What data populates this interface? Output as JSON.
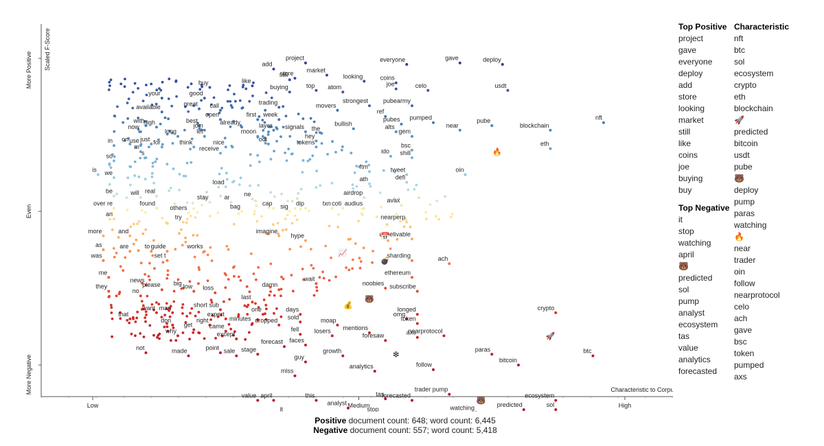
{
  "chart_data": {
    "type": "scatter",
    "ylabel_top": "More Positive",
    "ylabel_mid": "Even",
    "ylabel_bottom": "More Negative",
    "yaxis_title": "Scaled F-Score",
    "xaxis_title": "Characteristic to Corpus",
    "xticks": [
      "Low",
      "Medium",
      "High"
    ],
    "y_scale": [
      0,
      1
    ],
    "x_scale": [
      0,
      1
    ],
    "colors": {
      "positive": "#3b4ca0",
      "neutral": "#f6f1b2",
      "negative": "#b2182b"
    },
    "points": [
      {
        "t": "project",
        "x": 0.4,
        "y": 0.985
      },
      {
        "t": "everyone",
        "x": 0.59,
        "y": 0.98
      },
      {
        "t": "gave",
        "x": 0.69,
        "y": 0.985
      },
      {
        "t": "deploy",
        "x": 0.77,
        "y": 0.98
      },
      {
        "t": "add",
        "x": 0.34,
        "y": 0.965
      },
      {
        "t": "still",
        "x": 0.37,
        "y": 0.93
      },
      {
        "t": "store",
        "x": 0.38,
        "y": 0.935
      },
      {
        "t": "market",
        "x": 0.44,
        "y": 0.945
      },
      {
        "t": "looking",
        "x": 0.51,
        "y": 0.925
      },
      {
        "t": "coins",
        "x": 0.57,
        "y": 0.92
      },
      {
        "t": "buy",
        "x": 0.22,
        "y": 0.905
      },
      {
        "t": "like",
        "x": 0.3,
        "y": 0.91
      },
      {
        "t": "buying",
        "x": 0.37,
        "y": 0.89
      },
      {
        "t": "top",
        "x": 0.42,
        "y": 0.895
      },
      {
        "t": "atom",
        "x": 0.47,
        "y": 0.89
      },
      {
        "t": "joe",
        "x": 0.57,
        "y": 0.9
      },
      {
        "t": "celo",
        "x": 0.63,
        "y": 0.895
      },
      {
        "t": "usdt",
        "x": 0.78,
        "y": 0.895
      },
      {
        "t": "your",
        "x": 0.13,
        "y": 0.87
      },
      {
        "t": "good",
        "x": 0.21,
        "y": 0.87
      },
      {
        "t": "trading",
        "x": 0.35,
        "y": 0.84
      },
      {
        "t": "movers",
        "x": 0.46,
        "y": 0.83
      },
      {
        "t": "strongest",
        "x": 0.52,
        "y": 0.845
      },
      {
        "t": "pubearmy",
        "x": 0.6,
        "y": 0.845
      },
      {
        "t": "available",
        "x": 0.13,
        "y": 0.825
      },
      {
        "t": "great",
        "x": 0.2,
        "y": 0.835
      },
      {
        "t": "call",
        "x": 0.24,
        "y": 0.83
      },
      {
        "t": "first",
        "x": 0.31,
        "y": 0.8
      },
      {
        "t": "week",
        "x": 0.35,
        "y": 0.8
      },
      {
        "t": "ref",
        "x": 0.55,
        "y": 0.81
      },
      {
        "t": "with",
        "x": 0.1,
        "y": 0.78
      },
      {
        "t": "high",
        "x": 0.12,
        "y": 0.775
      },
      {
        "t": "open",
        "x": 0.24,
        "y": 0.8
      },
      {
        "t": "best",
        "x": 0.2,
        "y": 0.78
      },
      {
        "t": "already",
        "x": 0.28,
        "y": 0.775
      },
      {
        "t": "join",
        "x": 0.21,
        "y": 0.765
      },
      {
        "t": "pubes",
        "x": 0.58,
        "y": 0.785
      },
      {
        "t": "pumped",
        "x": 0.64,
        "y": 0.79
      },
      {
        "t": "pube",
        "x": 0.75,
        "y": 0.78
      },
      {
        "t": "bullish",
        "x": 0.49,
        "y": 0.77
      },
      {
        "t": "nft",
        "x": 0.96,
        "y": 0.79
      },
      {
        "t": "now",
        "x": 0.09,
        "y": 0.76
      },
      {
        "t": "long",
        "x": 0.16,
        "y": 0.745
      },
      {
        "t": "let",
        "x": 0.21,
        "y": 0.745
      },
      {
        "t": "layer",
        "x": 0.34,
        "y": 0.765
      },
      {
        "t": "moon",
        "x": 0.31,
        "y": 0.745
      },
      {
        "t": "signals",
        "x": 0.4,
        "y": 0.76
      },
      {
        "t": "the",
        "x": 0.43,
        "y": 0.755
      },
      {
        "t": "alts",
        "x": 0.57,
        "y": 0.76
      },
      {
        "t": "near",
        "x": 0.69,
        "y": 0.765
      },
      {
        "t": "blockchain",
        "x": 0.86,
        "y": 0.765
      },
      {
        "t": "gem",
        "x": 0.6,
        "y": 0.745
      },
      {
        "t": "on",
        "x": 0.07,
        "y": 0.72
      },
      {
        "t": "use",
        "x": 0.09,
        "y": 0.715
      },
      {
        "t": "just",
        "x": 0.11,
        "y": 0.72
      },
      {
        "t": "think",
        "x": 0.19,
        "y": 0.71
      },
      {
        "t": "oct",
        "x": 0.33,
        "y": 0.72
      },
      {
        "t": "hey",
        "x": 0.42,
        "y": 0.73
      },
      {
        "t": "tokens",
        "x": 0.42,
        "y": 0.71
      },
      {
        "t": "bsc",
        "x": 0.6,
        "y": 0.7
      },
      {
        "t": "eth",
        "x": 0.86,
        "y": 0.705
      },
      {
        "t": "in",
        "x": 0.04,
        "y": 0.715
      },
      {
        "t": "m",
        "x": 0.09,
        "y": 0.695
      },
      {
        "t": "for",
        "x": 0.13,
        "y": 0.71
      },
      {
        "t": "nice",
        "x": 0.25,
        "y": 0.71
      },
      {
        "t": "receive",
        "x": 0.24,
        "y": 0.69
      },
      {
        "t": "ido",
        "x": 0.56,
        "y": 0.68
      },
      {
        "t": "shill",
        "x": 0.6,
        "y": 0.675
      },
      {
        "t": "so",
        "x": 0.04,
        "y": 0.665
      },
      {
        "t": "s",
        "x": 0.1,
        "y": 0.675
      },
      {
        "t": "is",
        "x": 0.01,
        "y": 0.62
      },
      {
        "t": "we",
        "x": 0.04,
        "y": 0.61
      },
      {
        "t": "ftm",
        "x": 0.52,
        "y": 0.63
      },
      {
        "t": "tweet",
        "x": 0.59,
        "y": 0.62
      },
      {
        "t": "oin",
        "x": 0.7,
        "y": 0.62
      },
      {
        "t": "ath",
        "x": 0.52,
        "y": 0.59
      },
      {
        "t": "defi",
        "x": 0.59,
        "y": 0.595
      },
      {
        "t": "load",
        "x": 0.25,
        "y": 0.58
      },
      {
        "t": "be",
        "x": 0.04,
        "y": 0.55
      },
      {
        "t": "will",
        "x": 0.09,
        "y": 0.545
      },
      {
        "t": "real",
        "x": 0.12,
        "y": 0.55
      },
      {
        "t": "stay",
        "x": 0.22,
        "y": 0.53
      },
      {
        "t": "ar",
        "x": 0.26,
        "y": 0.53
      },
      {
        "t": "ne",
        "x": 0.3,
        "y": 0.54
      },
      {
        "t": "airdrop",
        "x": 0.51,
        "y": 0.545
      },
      {
        "t": "avax",
        "x": 0.58,
        "y": 0.52
      },
      {
        "t": "over re",
        "x": 0.04,
        "y": 0.51
      },
      {
        "t": "found",
        "x": 0.12,
        "y": 0.51
      },
      {
        "t": "others",
        "x": 0.18,
        "y": 0.495
      },
      {
        "t": "bag",
        "x": 0.28,
        "y": 0.5
      },
      {
        "t": "cap",
        "x": 0.34,
        "y": 0.51
      },
      {
        "t": "sig",
        "x": 0.37,
        "y": 0.5
      },
      {
        "t": "dip",
        "x": 0.4,
        "y": 0.51
      },
      {
        "t": "txn",
        "x": 0.45,
        "y": 0.51
      },
      {
        "t": "coti",
        "x": 0.47,
        "y": 0.51
      },
      {
        "t": "audius",
        "x": 0.51,
        "y": 0.51
      },
      {
        "t": "an",
        "x": 0.04,
        "y": 0.475
      },
      {
        "t": "try",
        "x": 0.17,
        "y": 0.465
      },
      {
        "t": "nearperp",
        "x": 0.59,
        "y": 0.465
      },
      {
        "t": "more",
        "x": 0.02,
        "y": 0.42
      },
      {
        "t": "and",
        "x": 0.07,
        "y": 0.42
      },
      {
        "t": "imagine",
        "x": 0.35,
        "y": 0.42
      },
      {
        "t": "unbelivable",
        "x": 0.6,
        "y": 0.41
      },
      {
        "t": "hype",
        "x": 0.4,
        "y": 0.405
      },
      {
        "t": "as",
        "x": 0.02,
        "y": 0.375
      },
      {
        "t": "are",
        "x": 0.07,
        "y": 0.37
      },
      {
        "t": "to",
        "x": 0.11,
        "y": 0.37
      },
      {
        "t": "guide",
        "x": 0.14,
        "y": 0.37
      },
      {
        "t": "works",
        "x": 0.21,
        "y": 0.37
      },
      {
        "t": "was",
        "x": 0.02,
        "y": 0.34
      },
      {
        "t": "set t",
        "x": 0.14,
        "y": 0.34
      },
      {
        "t": "sharding",
        "x": 0.6,
        "y": 0.34
      },
      {
        "t": "ach",
        "x": 0.67,
        "y": 0.33
      },
      {
        "t": "me",
        "x": 0.03,
        "y": 0.285
      },
      {
        "t": "news",
        "x": 0.1,
        "y": 0.26
      },
      {
        "t": "please",
        "x": 0.13,
        "y": 0.245
      },
      {
        "t": "big",
        "x": 0.17,
        "y": 0.25
      },
      {
        "t": "low",
        "x": 0.19,
        "y": 0.24
      },
      {
        "t": "loss",
        "x": 0.23,
        "y": 0.235
      },
      {
        "t": "wait",
        "x": 0.42,
        "y": 0.265
      },
      {
        "t": "ethereum",
        "x": 0.6,
        "y": 0.285
      },
      {
        "t": "noobies",
        "x": 0.55,
        "y": 0.25
      },
      {
        "t": "they",
        "x": 0.03,
        "y": 0.24
      },
      {
        "t": "no",
        "x": 0.09,
        "y": 0.225
      },
      {
        "t": "last",
        "x": 0.3,
        "y": 0.205
      },
      {
        "t": "damn",
        "x": 0.35,
        "y": 0.245
      },
      {
        "t": "subscribe",
        "x": 0.61,
        "y": 0.24
      },
      {
        "t": "want",
        "x": 0.12,
        "y": 0.17
      },
      {
        "t": "man",
        "x": 0.15,
        "y": 0.17
      },
      {
        "t": "short sub",
        "x": 0.24,
        "y": 0.18
      },
      {
        "t": "one",
        "x": 0.32,
        "y": 0.165
      },
      {
        "t": "days",
        "x": 0.39,
        "y": 0.165
      },
      {
        "t": "longed",
        "x": 0.61,
        "y": 0.165
      },
      {
        "t": "crypto",
        "x": 0.87,
        "y": 0.17
      },
      {
        "t": "that",
        "x": 0.07,
        "y": 0.15
      },
      {
        "t": "expert",
        "x": 0.25,
        "y": 0.15
      },
      {
        "t": "minutes",
        "x": 0.3,
        "y": 0.135
      },
      {
        "t": "sold",
        "x": 0.39,
        "y": 0.14
      },
      {
        "t": "omg",
        "x": 0.59,
        "y": 0.15
      },
      {
        "t": "token",
        "x": 0.61,
        "y": 0.135
      },
      {
        "t": "don",
        "x": 0.15,
        "y": 0.13
      },
      {
        "t": "right",
        "x": 0.22,
        "y": 0.13
      },
      {
        "t": "dropped",
        "x": 0.35,
        "y": 0.13
      },
      {
        "t": "moap",
        "x": 0.46,
        "y": 0.13
      },
      {
        "t": "get",
        "x": 0.19,
        "y": 0.115
      },
      {
        "t": "came",
        "x": 0.25,
        "y": 0.11
      },
      {
        "t": "fell",
        "x": 0.39,
        "y": 0.1
      },
      {
        "t": "mentions",
        "x": 0.52,
        "y": 0.105
      },
      {
        "t": "why",
        "x": 0.16,
        "y": 0.095
      },
      {
        "t": "except",
        "x": 0.27,
        "y": 0.085
      },
      {
        "t": "losers",
        "x": 0.45,
        "y": 0.095
      },
      {
        "t": "axs",
        "x": 0.61,
        "y": 0.09
      },
      {
        "t": "nearprotocol",
        "x": 0.66,
        "y": 0.095
      },
      {
        "t": "foresaw",
        "x": 0.55,
        "y": 0.08
      },
      {
        "t": "faces",
        "x": 0.4,
        "y": 0.065
      },
      {
        "t": "forecast",
        "x": 0.36,
        "y": 0.06
      },
      {
        "t": "not",
        "x": 0.1,
        "y": 0.04
      },
      {
        "t": "point",
        "x": 0.24,
        "y": 0.04
      },
      {
        "t": "sale",
        "x": 0.27,
        "y": 0.03
      },
      {
        "t": "made",
        "x": 0.18,
        "y": 0.03
      },
      {
        "t": "stage",
        "x": 0.31,
        "y": 0.035
      },
      {
        "t": "paras",
        "x": 0.75,
        "y": 0.035
      },
      {
        "t": "growth",
        "x": 0.47,
        "y": 0.03
      },
      {
        "t": "btc",
        "x": 0.94,
        "y": 0.03
      },
      {
        "t": "guy",
        "x": 0.4,
        "y": 0.01
      },
      {
        "t": "bitcoin",
        "x": 0.8,
        "y": 0.0
      },
      {
        "t": "analytics",
        "x": 0.53,
        "y": -0.02
      },
      {
        "t": "follow",
        "x": 0.64,
        "y": -0.015
      },
      {
        "t": "miss",
        "x": 0.38,
        "y": -0.035
      },
      {
        "t": "trader pump",
        "x": 0.67,
        "y": -0.095
      },
      {
        "t": "value",
        "x": 0.31,
        "y": -0.115
      },
      {
        "t": "april",
        "x": 0.34,
        "y": -0.115
      },
      {
        "t": "this",
        "x": 0.42,
        "y": -0.115
      },
      {
        "t": "tas",
        "x": 0.55,
        "y": -0.11
      },
      {
        "t": "forecasted",
        "x": 0.6,
        "y": -0.115
      },
      {
        "t": "ecosystem",
        "x": 0.87,
        "y": -0.115
      },
      {
        "t": "analyst",
        "x": 0.48,
        "y": -0.14
      },
      {
        "t": "stop",
        "x": 0.54,
        "y": -0.16
      },
      {
        "t": "watching",
        "x": 0.72,
        "y": -0.155
      },
      {
        "t": "predicted",
        "x": 0.81,
        "y": -0.145
      },
      {
        "t": "sol",
        "x": 0.87,
        "y": -0.145
      },
      {
        "t": "it",
        "x": 0.36,
        "y": -0.16
      }
    ],
    "emojis": [
      {
        "icon": "fire",
        "x": 0.76,
        "y": 0.695
      },
      {
        "icon": "rocket",
        "x": 0.86,
        "y": 0.095
      },
      {
        "icon": "bear",
        "x": 0.73,
        "y": -0.115
      },
      {
        "icon": "bear",
        "x": 0.52,
        "y": 0.215
      },
      {
        "icon": "moneybag",
        "x": 0.48,
        "y": 0.195
      },
      {
        "icon": "calendar",
        "x": 0.55,
        "y": 0.42
      },
      {
        "icon": "chart",
        "x": 0.47,
        "y": 0.365
      },
      {
        "icon": "bomb",
        "x": 0.55,
        "y": 0.34
      },
      {
        "icon": "sparkle",
        "x": 0.57,
        "y": 0.035
      }
    ]
  },
  "side_panel": {
    "top_positive_title": "Top Positive",
    "top_positive": [
      "project",
      "gave",
      "everyone",
      "deploy",
      "add",
      "store",
      "looking",
      "market",
      "still",
      "like",
      "coins",
      "joe",
      "buying",
      "buy"
    ],
    "top_negative_title": "Top Negative",
    "top_negative": [
      "it",
      "stop",
      "watching",
      "april",
      "bear-emoji",
      "predicted",
      "sol",
      "pump",
      "analyst",
      "ecosystem",
      "tas",
      "value",
      "analytics",
      "forecasted"
    ],
    "characteristic_title": "Characteristic",
    "characteristic": [
      "nft",
      "btc",
      "sol",
      "ecosystem",
      "crypto",
      "eth",
      "blockchain",
      "rocket-emoji",
      "predicted",
      "bitcoin",
      "usdt",
      "pube",
      "bear-emoji",
      "deploy",
      "pump",
      "paras",
      "watching",
      "fire-emoji",
      "near",
      "trader",
      "oin",
      "follow",
      "nearprotocol",
      "celo",
      "ach",
      "gave",
      "bsc",
      "token",
      "pumped",
      "axs"
    ]
  },
  "footer": {
    "positive_label": "Positive",
    "positive_text": " document count: 648; word count: 6,445",
    "negative_label": "Negative",
    "negative_text": " document count: 557; word count: 5,418"
  }
}
